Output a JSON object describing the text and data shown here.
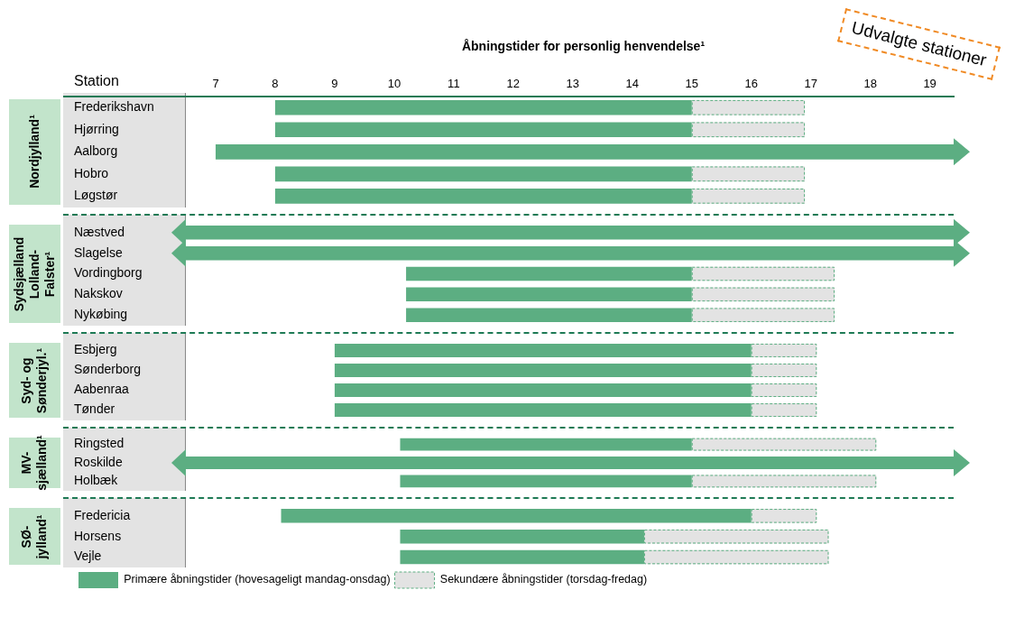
{
  "chart_data": [
    {
      "type": "bar",
      "orientation": "horizontal",
      "title": "Åbningstider for personlig henvendelse¹",
      "ylabel": "Nordjylland¹",
      "categories": [
        "Frederikshavn",
        "Hjørring",
        "Aalborg",
        "Hobro",
        "Løgstør"
      ],
      "series": [
        {
          "color": "#5cae82",
          "base": [
            8,
            8,
            7,
            8,
            8
          ],
          "values": [
            7,
            7,
            12.4,
            7,
            7
          ]
        },
        {
          "color": "#e3e3e3",
          "base": [
            15,
            15,
            null,
            15,
            15
          ],
          "values": [
            1.9,
            1.9,
            null,
            1.9,
            1.9
          ]
        }
      ],
      "xlim": [
        6.5,
        19.4
      ],
      "xticks": [
        7,
        8,
        9,
        10,
        11,
        12,
        13,
        14,
        15,
        16,
        17,
        18,
        19
      ],
      "grid": false,
      "annotations": [
        "Station",
        "Udvalgte stationer"
      ]
    },
    {
      "type": "bar",
      "orientation": "horizontal",
      "ylabel": "Sydsjælland Lolland-Falster¹",
      "categories": [
        "Næstved",
        "Slagelse",
        "Vordingborg",
        "Nakskov",
        "Nykøbing"
      ],
      "series": [
        {
          "color": "#5cae82",
          "base": [
            6.5,
            6.5,
            10.2,
            10.2,
            10.2
          ],
          "values": [
            12.9,
            12.9,
            4.8,
            4.8,
            4.8
          ]
        },
        {
          "color": "#e3e3e3",
          "base": [
            null,
            null,
            15,
            15,
            15
          ],
          "values": [
            null,
            null,
            2.4,
            2.4,
            2.4
          ]
        }
      ],
      "xlim": [
        6.5,
        19.4
      ],
      "grid": false,
      "tick_labels": "y"
    },
    {
      "type": "bar",
      "orientation": "horizontal",
      "ylabel": "Syd- og Sønderjyl.¹",
      "categories": [
        "Esbjerg",
        "Sønderborg",
        "Aabenraa",
        "Tønder"
      ],
      "series": [
        {
          "color": "#5cae82",
          "base": [
            9,
            9,
            9,
            9
          ],
          "values": [
            7,
            7,
            7,
            7
          ]
        },
        {
          "color": "#e3e3e3",
          "base": [
            16,
            16,
            16,
            16
          ],
          "values": [
            1.1,
            1.1,
            1.1,
            1.1
          ]
        }
      ],
      "xlim": [
        6.5,
        19.4
      ],
      "grid": false,
      "tick_labels": "y"
    },
    {
      "type": "bar",
      "orientation": "horizontal",
      "ylabel": "MV-sjælland¹",
      "categories": [
        "Ringsted",
        "Roskilde",
        "Holbæk"
      ],
      "series": [
        {
          "color": "#5cae82",
          "base": [
            10.1,
            6.5,
            10.1
          ],
          "values": [
            4.9,
            12.9,
            4.9
          ]
        },
        {
          "color": "#e3e3e3",
          "base": [
            15,
            null,
            15
          ],
          "values": [
            3.1,
            null,
            3.1
          ]
        }
      ],
      "xlim": [
        6.5,
        19.4
      ],
      "grid": false,
      "tick_labels": "y"
    },
    {
      "type": "bar",
      "orientation": "horizontal",
      "ylabel": "SØ-jylland¹",
      "categories": [
        "Fredericia",
        "Horsens",
        "Vejle"
      ],
      "series": [
        {
          "name": "Primære åbningstider (hovesageligt mandag-onsdag)",
          "color": "#5cae82",
          "base": [
            8.1,
            10.1,
            10.1
          ],
          "values": [
            7.9,
            4.1,
            4.1
          ]
        },
        {
          "name": "Sekundære åbningstider (torsdag-fredag)",
          "color": "#e3e3e3",
          "base": [
            16,
            14.2,
            14.2
          ],
          "values": [
            1.1,
            3.1,
            3.1
          ]
        }
      ],
      "xlim": [
        6.5,
        19.4
      ],
      "grid": false,
      "tick_labels": "y",
      "legend": "bottom left"
    }
  ]
}
